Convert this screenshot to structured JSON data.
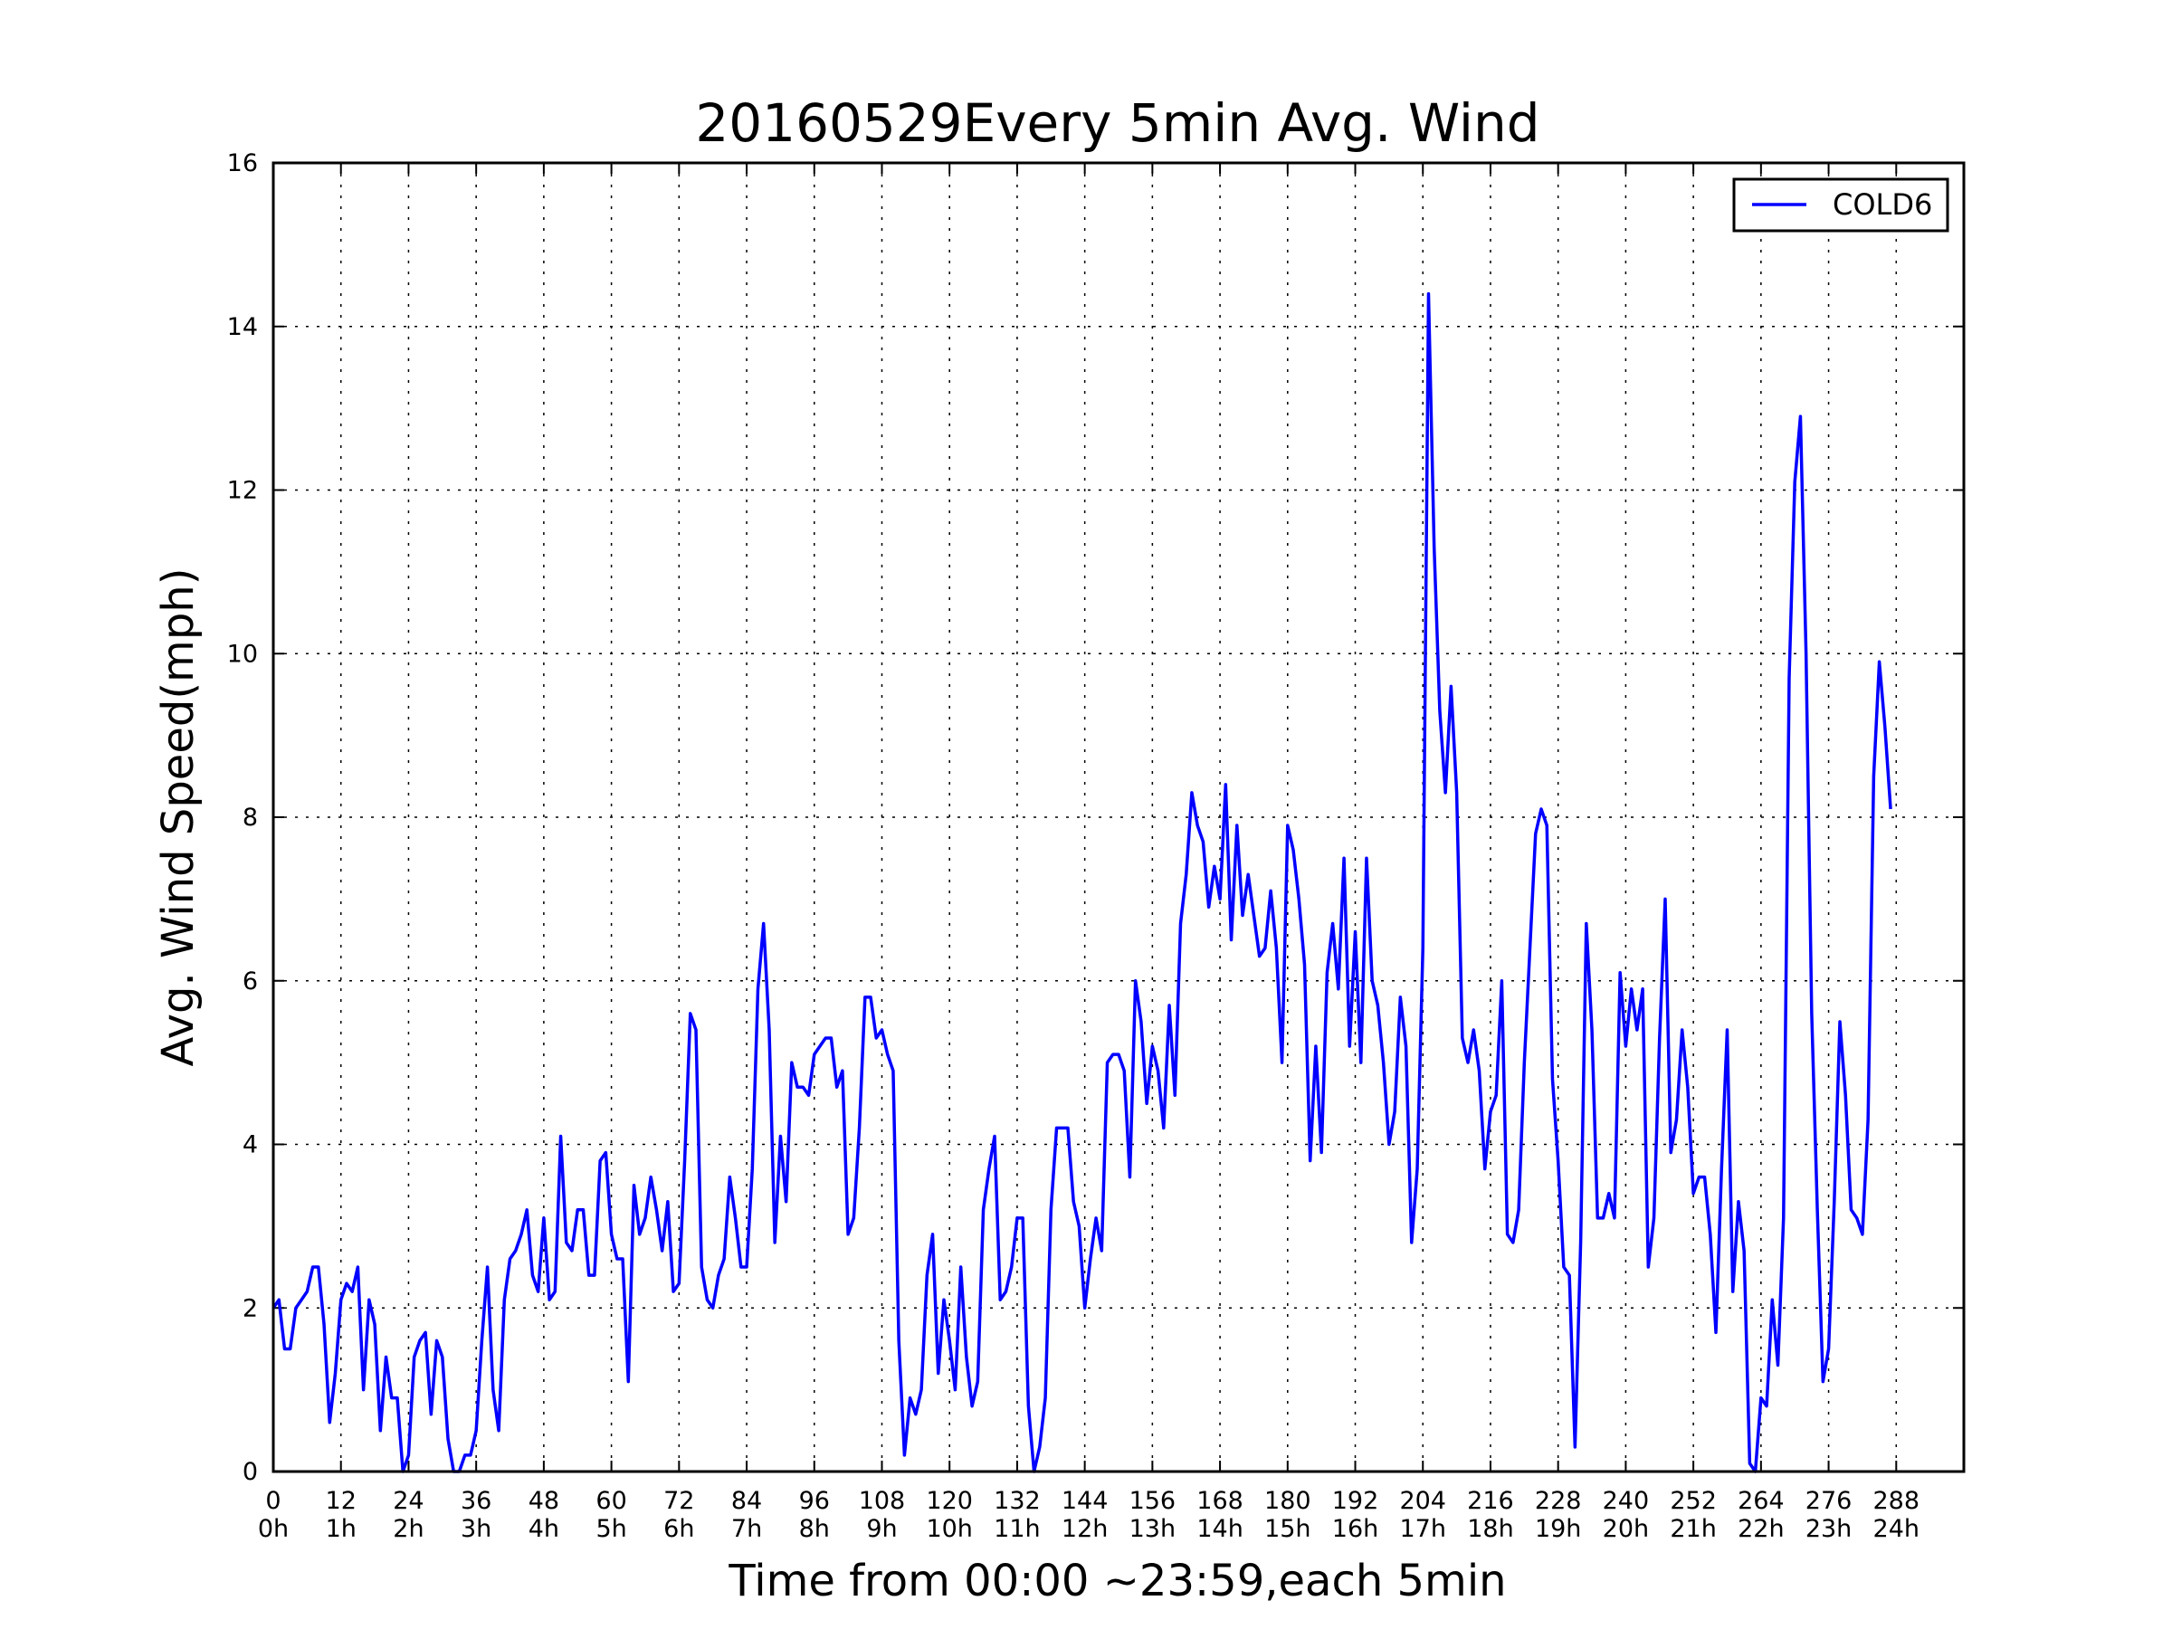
{
  "chart_data": {
    "type": "line",
    "title": "20160529Every 5min Avg. Wind",
    "xlabel": "Time from 00:00 ~23:59,each 5min",
    "ylabel": "Avg. Wind Speed(mph)",
    "xlim": [
      0,
      300
    ],
    "ylim": [
      0,
      16
    ],
    "grid": true,
    "legend_position": "top-right",
    "line_color": "#0000ff",
    "x_ticks": [
      0,
      12,
      24,
      36,
      48,
      60,
      72,
      84,
      96,
      108,
      120,
      132,
      144,
      156,
      168,
      180,
      192,
      204,
      216,
      228,
      240,
      252,
      264,
      276,
      288
    ],
    "x_tick_labels": [
      "0",
      "12",
      "24",
      "36",
      "48",
      "60",
      "72",
      "84",
      "96",
      "108",
      "120",
      "132",
      "144",
      "156",
      "168",
      "180",
      "192",
      "204",
      "216",
      "228",
      "240",
      "252",
      "264",
      "276",
      "288"
    ],
    "x_tick_sublabels": [
      "0h",
      "1h",
      "2h",
      "3h",
      "4h",
      "5h",
      "6h",
      "7h",
      "8h",
      "9h",
      "10h",
      "11h",
      "12h",
      "13h",
      "14h",
      "15h",
      "16h",
      "17h",
      "18h",
      "19h",
      "20h",
      "21h",
      "22h",
      "23h",
      "24h"
    ],
    "y_ticks": [
      0,
      2,
      4,
      6,
      8,
      10,
      12,
      14,
      16
    ],
    "y_tick_labels": [
      "0",
      "2",
      "4",
      "6",
      "8",
      "10",
      "12",
      "14",
      "16"
    ],
    "series": [
      {
        "name": "COLD6",
        "values": [
          2.0,
          2.1,
          1.5,
          1.5,
          2.0,
          2.1,
          2.2,
          2.5,
          2.5,
          1.8,
          0.6,
          1.2,
          2.1,
          2.3,
          2.2,
          2.5,
          1.0,
          2.1,
          1.8,
          0.5,
          1.4,
          0.9,
          0.9,
          0.0,
          0.2,
          1.4,
          1.6,
          1.7,
          0.7,
          1.6,
          1.4,
          0.4,
          0.0,
          0.0,
          0.2,
          0.2,
          0.5,
          1.6,
          2.5,
          1.0,
          0.5,
          2.1,
          2.6,
          2.7,
          2.9,
          3.2,
          2.4,
          2.2,
          3.1,
          2.1,
          2.2,
          4.1,
          2.8,
          2.7,
          3.2,
          3.2,
          2.4,
          2.4,
          3.8,
          3.9,
          2.9,
          2.6,
          2.6,
          1.1,
          3.5,
          2.9,
          3.1,
          3.6,
          3.2,
          2.7,
          3.3,
          2.2,
          2.3,
          3.8,
          5.6,
          5.4,
          2.5,
          2.1,
          2.0,
          2.4,
          2.6,
          3.6,
          3.1,
          2.5,
          2.5,
          3.7,
          5.9,
          6.7,
          5.4,
          2.8,
          4.1,
          3.3,
          5.0,
          4.7,
          4.7,
          4.6,
          5.1,
          5.2,
          5.3,
          5.3,
          4.7,
          4.9,
          2.9,
          3.1,
          4.2,
          5.8,
          5.8,
          5.3,
          5.4,
          5.1,
          4.9,
          1.6,
          0.2,
          0.9,
          0.7,
          1.0,
          2.4,
          2.9,
          1.2,
          2.1,
          1.6,
          1.0,
          2.5,
          1.4,
          0.8,
          1.1,
          3.2,
          3.7,
          4.1,
          2.1,
          2.2,
          2.5,
          3.1,
          3.1,
          0.8,
          0.0,
          0.3,
          0.9,
          3.2,
          4.2,
          4.2,
          4.2,
          3.3,
          3.0,
          2.0,
          2.6,
          3.1,
          2.7,
          5.0,
          5.1,
          5.1,
          4.9,
          3.6,
          6.0,
          5.5,
          4.5,
          5.2,
          4.9,
          4.2,
          5.7,
          4.6,
          6.7,
          7.3,
          8.3,
          7.9,
          7.7,
          6.9,
          7.4,
          7.0,
          8.4,
          6.5,
          7.9,
          6.8,
          7.3,
          6.8,
          6.3,
          6.4,
          7.1,
          6.4,
          5.0,
          7.9,
          7.6,
          7.0,
          6.2,
          3.8,
          5.2,
          3.9,
          6.1,
          6.7,
          5.9,
          7.5,
          5.2,
          6.6,
          5.0,
          7.5,
          6.0,
          5.7,
          5.0,
          4.0,
          4.4,
          5.8,
          5.2,
          2.8,
          3.7,
          6.4,
          14.4,
          11.3,
          9.3,
          8.3,
          9.6,
          8.3,
          5.3,
          5.0,
          5.4,
          4.9,
          3.7,
          4.4,
          4.6,
          6.0,
          2.9,
          2.8,
          3.2,
          5.0,
          6.4,
          7.8,
          8.1,
          7.9,
          4.8,
          3.8,
          2.5,
          2.4,
          0.3,
          2.8,
          6.7,
          5.4,
          3.1,
          3.1,
          3.4,
          3.1,
          6.1,
          5.2,
          5.9,
          5.4,
          5.9,
          2.5,
          3.1,
          5.3,
          7.0,
          3.9,
          4.3,
          5.4,
          4.7,
          3.4,
          3.6,
          3.6,
          2.9,
          1.7,
          3.7,
          5.4,
          2.2,
          3.3,
          2.7,
          0.1,
          0.0,
          0.9,
          0.8,
          2.1,
          1.3,
          3.1,
          9.7,
          12.1,
          12.9,
          10.0,
          5.6,
          3.2,
          1.1,
          1.5,
          3.3,
          5.5,
          4.6,
          3.2,
          3.1,
          2.9,
          4.3,
          8.5,
          9.9,
          9.1,
          8.1
        ]
      }
    ]
  }
}
